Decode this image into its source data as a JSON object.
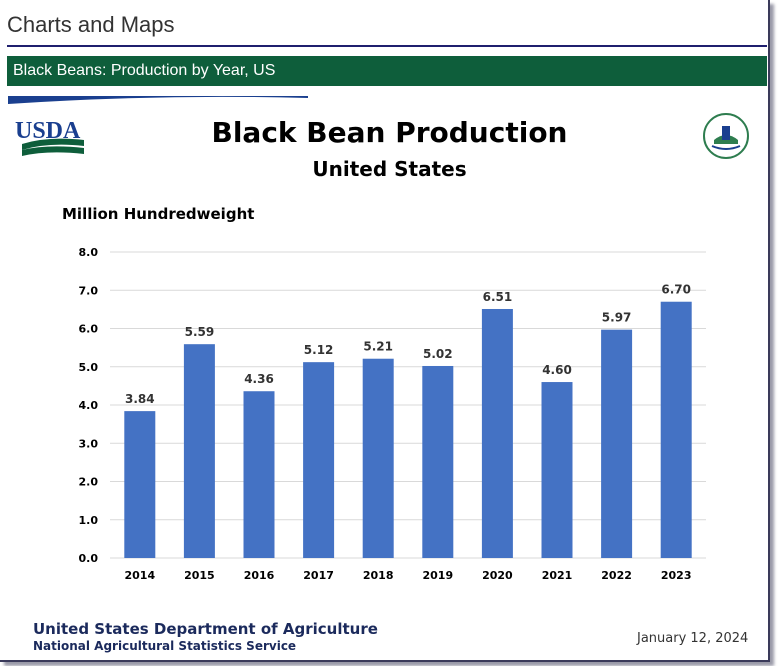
{
  "page": {
    "title": "Charts and Maps"
  },
  "banner": {
    "label": "Black Beans: Production by Year, US"
  },
  "logos": {
    "left": "USDA",
    "right_icon": "agriculture-counts-logo"
  },
  "footer": {
    "org": "United States Department of Agriculture",
    "sub": "National Agricultural Statistics Service",
    "date": "January 12, 2024"
  },
  "colors": {
    "bar": "#4472c4",
    "banner": "#0e5e3b",
    "navy": "#1b2a5c"
  },
  "chart_data": {
    "type": "bar",
    "title": "Black Bean Production",
    "subtitle": "United States",
    "ylabel": "Million Hundredweight",
    "xlabel": "",
    "categories": [
      "2014",
      "2015",
      "2016",
      "2017",
      "2018",
      "2019",
      "2020",
      "2021",
      "2022",
      "2023"
    ],
    "values": [
      3.84,
      5.59,
      4.36,
      5.12,
      5.21,
      5.02,
      6.51,
      4.6,
      5.97,
      6.7
    ],
    "value_labels": [
      "3.84",
      "5.59",
      "4.36",
      "5.12",
      "5.21",
      "5.02",
      "6.51",
      "4.60",
      "5.97",
      "6.70"
    ],
    "ylim": [
      0,
      8
    ],
    "yticks": [
      "0.0",
      "1.0",
      "2.0",
      "3.0",
      "4.0",
      "5.0",
      "6.0",
      "7.0",
      "8.0"
    ],
    "grid": true,
    "legend": "none"
  }
}
